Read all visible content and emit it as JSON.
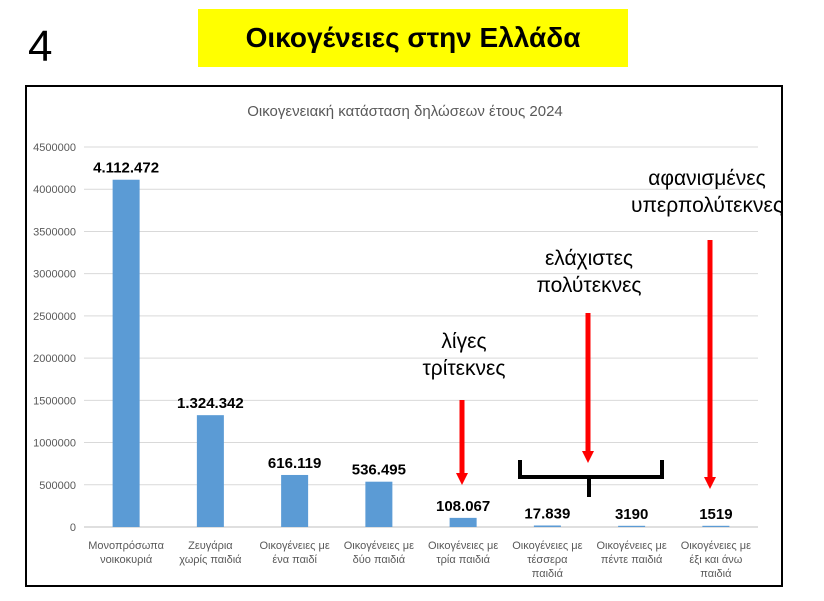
{
  "slide": {
    "number": "4",
    "title": "Οικογένειες στην Ελλάδα"
  },
  "chart_data": {
    "type": "bar",
    "title": "Οικογενειακή κατάσταση δηλώσεων έτους 2024",
    "xlabel": "",
    "ylabel": "",
    "ylim": [
      0,
      4500000
    ],
    "yticks": [
      0,
      500000,
      1000000,
      1500000,
      2000000,
      2500000,
      3000000,
      3500000,
      4000000,
      4500000
    ],
    "grid": true,
    "bar_color": "#5b9bd5",
    "categories": [
      [
        "Μονοπρόσωπα",
        "νοικοκυριά"
      ],
      [
        "Ζευγάρια",
        "χωρίς παιδιά"
      ],
      [
        "Οικογένειες με",
        "ένα παιδί"
      ],
      [
        "Οικογένειες με",
        "δύο παιδιά"
      ],
      [
        "Οικογένειες με",
        "τρία παιδιά"
      ],
      [
        "Οικογένειες με",
        "τέσσερα",
        "παιδιά"
      ],
      [
        "Οικογένειες με",
        "πέντε παιδιά"
      ],
      [
        "Οικογένειες με",
        "έξι και άνω",
        "παιδιά"
      ]
    ],
    "values": [
      4112472,
      1324342,
      616119,
      536495,
      108067,
      17839,
      3190,
      1519
    ],
    "data_labels": [
      "4.112.472",
      "1.324.342",
      "616.119",
      "536.495",
      "108.067",
      "17.839",
      "3190",
      "1519"
    ],
    "annotations": [
      {
        "lines": [
          "λίγες",
          "τρίτεκνες"
        ],
        "target_category": 4,
        "arrow_color": "#ff0000"
      },
      {
        "lines": [
          "ελάχιστες",
          "πολύτεκνες"
        ],
        "target_categories": [
          5,
          6
        ],
        "arrow_color": "#ff0000",
        "bracket": true
      },
      {
        "lines": [
          "αφανισμένες",
          "υπερπολύτεκνες"
        ],
        "target_category": 7,
        "arrow_color": "#ff0000"
      }
    ]
  }
}
